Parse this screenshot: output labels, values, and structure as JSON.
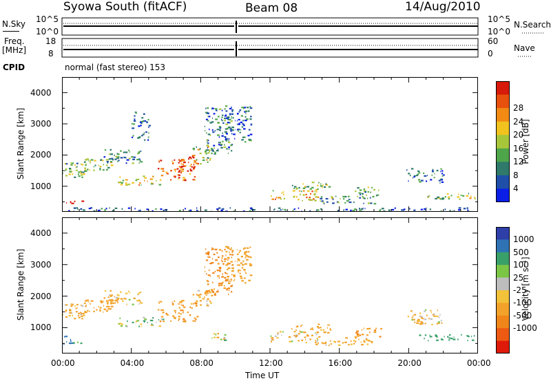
{
  "header": {
    "station": "Syowa South (fitACF)",
    "beam": "Beam 08",
    "date": "14/Aug/2010"
  },
  "top_panels": {
    "nsky_label": "N.Sky",
    "nsky_ticks": [
      "10^5",
      "10^0"
    ],
    "nsearch_label": "N.Search",
    "nsearch_ticks": [
      "10^5",
      "10^0"
    ],
    "freq_label": "Freq.",
    "freq_unit": "[MHz]",
    "freq_ticks": [
      "18",
      "8"
    ],
    "nave_label": "Nave",
    "nave_ticks": [
      "60",
      "0"
    ],
    "cpid_label": "CPID",
    "cpid_text": "normal (fast stereo) 153"
  },
  "axes": {
    "xlabel": "Time UT",
    "ylabel": "Slant Range [km]",
    "x_ticks": [
      "00:00",
      "04:00",
      "08:00",
      "12:00",
      "16:00",
      "20:00",
      "00:00"
    ],
    "y_ticks": [
      "1000",
      "2000",
      "3000",
      "4000"
    ]
  },
  "power_scale": {
    "label": "Power [dB]",
    "ticks": [
      "4",
      "8",
      "12",
      "16",
      "20",
      "24",
      "28"
    ],
    "colors": [
      "#0a1ee6",
      "#1f4fa8",
      "#2f7a6a",
      "#4fa64a",
      "#a8c63a",
      "#f2c21e",
      "#f28a14",
      "#e8500e",
      "#d81a0a"
    ]
  },
  "velocity_scale": {
    "label": "Velocity [m s⁻¹]",
    "ticks": [
      "1000",
      "500",
      "100",
      "25",
      "-25",
      "-100",
      "-500",
      "-1000"
    ],
    "colors": [
      "#2e3fa8",
      "#2f73b4",
      "#3aa06a",
      "#7cc646",
      "#bdbdbd",
      "#f2c23a",
      "#f2a22a",
      "#f0861a",
      "#ee5a12",
      "#e01a0a"
    ]
  },
  "chart_data": [
    {
      "type": "heatmap",
      "title": "",
      "quantity": "Power [dB]",
      "xlabel": "Time UT",
      "ylabel": "Slant Range [km]",
      "xlim": [
        0,
        24
      ],
      "ylim": [
        180,
        4500
      ],
      "clim": [
        0,
        30
      ],
      "regions": [
        {
          "t0": 0.0,
          "t1": 1.6,
          "r0": 1300,
          "r1": 1800,
          "v": 12
        },
        {
          "t0": 0.0,
          "t1": 0.6,
          "r0": 420,
          "r1": 600,
          "v": 26
        },
        {
          "t0": 0.6,
          "t1": 1.4,
          "r0": 520,
          "r1": 600,
          "v": 24
        },
        {
          "t0": 1.2,
          "t1": 3.2,
          "r0": 1500,
          "r1": 1900,
          "v": 14
        },
        {
          "t0": 2.4,
          "t1": 4.6,
          "r0": 1750,
          "r1": 2200,
          "v": 8
        },
        {
          "t0": 3.2,
          "t1": 5.8,
          "r0": 1050,
          "r1": 1350,
          "v": 18
        },
        {
          "t0": 5.5,
          "t1": 7.8,
          "r0": 1200,
          "r1": 1900,
          "v": 24
        },
        {
          "t0": 6.6,
          "t1": 7.6,
          "r0": 1500,
          "r1": 2100,
          "v": 28
        },
        {
          "t0": 7.4,
          "t1": 8.6,
          "r0": 1700,
          "r1": 2300,
          "v": 14
        },
        {
          "t0": 8.2,
          "t1": 9.8,
          "r0": 2000,
          "r1": 3600,
          "v": 8
        },
        {
          "t0": 9.4,
          "t1": 10.9,
          "r0": 2400,
          "r1": 3600,
          "v": 6
        },
        {
          "t0": 4.0,
          "t1": 5.0,
          "r0": 2500,
          "r1": 3400,
          "v": 6
        },
        {
          "t0": 12.0,
          "t1": 14.8,
          "r0": 550,
          "r1": 900,
          "v": 20
        },
        {
          "t0": 13.2,
          "t1": 15.5,
          "r0": 850,
          "r1": 1150,
          "v": 14
        },
        {
          "t0": 14.5,
          "t1": 18.0,
          "r0": 450,
          "r1": 700,
          "v": 10
        },
        {
          "t0": 16.8,
          "t1": 18.4,
          "r0": 700,
          "r1": 1000,
          "v": 12
        },
        {
          "t0": 20.5,
          "t1": 24.0,
          "r0": 600,
          "r1": 800,
          "v": 16
        },
        {
          "t0": 19.8,
          "t1": 22.0,
          "r0": 1100,
          "r1": 1600,
          "v": 6
        },
        {
          "t0": 0.0,
          "t1": 24.0,
          "r0": 200,
          "r1": 330,
          "v": 6
        }
      ]
    },
    {
      "type": "heatmap",
      "title": "",
      "quantity": "Velocity [m s⁻¹]",
      "xlabel": "Time UT",
      "ylabel": "Slant Range [km]",
      "xlim": [
        0,
        24
      ],
      "ylim": [
        180,
        4500
      ],
      "clim": [
        -1000,
        1000
      ],
      "regions": [
        {
          "t0": 0.0,
          "t1": 1.6,
          "r0": 1300,
          "r1": 1800,
          "v": -200
        },
        {
          "t0": 0.0,
          "t1": 0.6,
          "r0": 420,
          "r1": 800,
          "v": 500
        },
        {
          "t0": 0.6,
          "t1": 1.4,
          "r0": 520,
          "r1": 600,
          "v": 200
        },
        {
          "t0": 1.2,
          "t1": 3.2,
          "r0": 1500,
          "r1": 1900,
          "v": -300
        },
        {
          "t0": 2.4,
          "t1": 4.6,
          "r0": 1750,
          "r1": 2200,
          "v": -150
        },
        {
          "t0": 3.2,
          "t1": 5.8,
          "r0": 1050,
          "r1": 1350,
          "v": 100
        },
        {
          "t0": 5.5,
          "t1": 7.8,
          "r0": 1200,
          "r1": 1900,
          "v": -400
        },
        {
          "t0": 7.4,
          "t1": 8.6,
          "r0": 1700,
          "r1": 2300,
          "v": -200
        },
        {
          "t0": 8.2,
          "t1": 9.8,
          "r0": 2000,
          "r1": 3600,
          "v": -600
        },
        {
          "t0": 9.4,
          "t1": 10.9,
          "r0": 2400,
          "r1": 3600,
          "v": -300
        },
        {
          "t0": 8.6,
          "t1": 9.4,
          "r0": 600,
          "r1": 900,
          "v": 0
        },
        {
          "t0": 12.0,
          "t1": 14.8,
          "r0": 550,
          "r1": 900,
          "v": -150
        },
        {
          "t0": 13.2,
          "t1": 15.5,
          "r0": 850,
          "r1": 1150,
          "v": -250
        },
        {
          "t0": 14.5,
          "t1": 18.0,
          "r0": 450,
          "r1": 700,
          "v": -200
        },
        {
          "t0": 16.8,
          "t1": 18.4,
          "r0": 700,
          "r1": 1000,
          "v": -400
        },
        {
          "t0": 20.5,
          "t1": 24.0,
          "r0": 600,
          "r1": 800,
          "v": 300
        },
        {
          "t0": 19.8,
          "t1": 22.0,
          "r0": 1100,
          "r1": 1600,
          "v": -100
        }
      ]
    }
  ]
}
